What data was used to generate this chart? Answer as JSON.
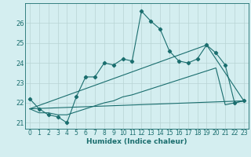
{
  "xlabel": "Humidex (Indice chaleur)",
  "bg_color": "#d4eef0",
  "grid_color": "#b8d4d4",
  "line_color": "#1a6e6e",
  "xlim": [
    -0.5,
    23.5
  ],
  "ylim": [
    20.7,
    27.0
  ],
  "xticks": [
    0,
    1,
    2,
    3,
    4,
    5,
    6,
    7,
    8,
    9,
    10,
    11,
    12,
    13,
    14,
    15,
    16,
    17,
    18,
    19,
    20,
    21,
    22,
    23
  ],
  "yticks": [
    21,
    22,
    23,
    24,
    25,
    26
  ],
  "curve1_x": [
    0,
    1,
    2,
    3,
    4,
    5,
    6,
    7,
    8,
    9,
    10,
    11,
    12,
    13,
    14,
    15,
    16,
    17,
    18,
    19,
    20,
    21,
    22,
    23
  ],
  "curve1_y": [
    22.2,
    21.7,
    21.4,
    21.3,
    21.0,
    22.3,
    23.3,
    23.3,
    24.0,
    23.9,
    24.2,
    24.1,
    26.6,
    26.1,
    25.7,
    24.6,
    24.1,
    24.0,
    24.2,
    24.9,
    24.5,
    23.9,
    22.0,
    22.1
  ],
  "curve2_x": [
    0,
    1,
    2,
    3,
    4,
    5,
    6,
    7,
    8,
    9,
    10,
    11,
    12,
    13,
    14,
    15,
    16,
    17,
    18,
    19,
    20,
    21,
    22,
    23
  ],
  "curve2_y": [
    21.7,
    21.5,
    21.5,
    21.4,
    21.4,
    21.55,
    21.7,
    21.85,
    22.0,
    22.1,
    22.3,
    22.4,
    22.55,
    22.7,
    22.85,
    23.0,
    23.15,
    23.3,
    23.45,
    23.6,
    23.75,
    21.9,
    22.0,
    22.1
  ],
  "line1_x": [
    0,
    23
  ],
  "line1_y": [
    21.7,
    22.1
  ],
  "line2_x": [
    0,
    19,
    23
  ],
  "line2_y": [
    21.7,
    24.9,
    22.1
  ],
  "figsize": [
    3.2,
    2.0
  ],
  "dpi": 100
}
